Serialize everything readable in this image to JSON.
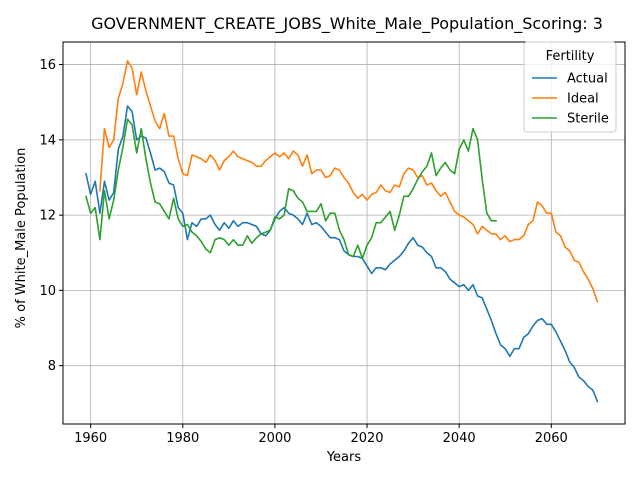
{
  "chart_data": {
    "type": "line",
    "title": "GOVERNMENT_CREATE_JOBS_White_Male_Population_Scoring: 3",
    "xlabel": "Years",
    "ylabel": "% of White_Male Population",
    "xlim": [
      1954,
      2076
    ],
    "ylim": [
      6.45,
      16.6
    ],
    "xticks": [
      1960,
      1980,
      2000,
      2020,
      2040,
      2060
    ],
    "yticks": [
      8,
      10,
      12,
      14,
      16
    ],
    "grid": true,
    "legend": {
      "title": "Fertility",
      "placement": "top-right"
    },
    "series": [
      {
        "name": "Actual",
        "color": "#1f77b4",
        "x": [
          1959,
          1960,
          1961,
          1962,
          1963,
          1964,
          1965,
          1966,
          1967,
          1968,
          1969,
          1970,
          1971,
          1972,
          1973,
          1974,
          1975,
          1976,
          1977,
          1978,
          1979,
          1980,
          1981,
          1982,
          1983,
          1984,
          1985,
          1986,
          1987,
          1988,
          1989,
          1990,
          1991,
          1992,
          1993,
          1994,
          1995,
          1996,
          1997,
          1998,
          1999,
          2000,
          2001,
          2002,
          2003,
          2004,
          2005,
          2006,
          2007,
          2008,
          2009,
          2010,
          2011,
          2012,
          2013,
          2014,
          2015,
          2016,
          2017,
          2018,
          2019,
          2020,
          2021,
          2022,
          2023,
          2024,
          2025,
          2026,
          2027,
          2028,
          2029,
          2030,
          2031,
          2032,
          2033,
          2034,
          2035,
          2036,
          2037,
          2038,
          2039,
          2040,
          2041,
          2042,
          2043,
          2044,
          2045,
          2046,
          2047,
          2048,
          2049,
          2050,
          2051,
          2052,
          2053,
          2054,
          2055,
          2056,
          2057,
          2058,
          2059,
          2060,
          2061,
          2062,
          2063,
          2064,
          2065,
          2066,
          2067,
          2068,
          2069,
          2070
        ],
        "values": [
          13.1,
          12.55,
          12.9,
          12.05,
          12.9,
          12.4,
          12.6,
          13.75,
          14.1,
          14.9,
          14.75,
          14.0,
          14.1,
          14.05,
          13.65,
          13.2,
          13.25,
          13.15,
          12.85,
          12.8,
          12.2,
          12.05,
          11.35,
          11.8,
          11.7,
          11.9,
          11.9,
          12.0,
          11.75,
          11.6,
          11.8,
          11.65,
          11.85,
          11.7,
          11.8,
          11.8,
          11.75,
          11.7,
          11.5,
          11.45,
          11.6,
          11.9,
          12.1,
          12.2,
          12.05,
          12.0,
          11.9,
          11.75,
          12.05,
          11.75,
          11.8,
          11.7,
          11.55,
          11.4,
          11.4,
          11.35,
          11.05,
          10.95,
          10.9,
          10.9,
          10.85,
          10.65,
          10.45,
          10.6,
          10.6,
          10.55,
          10.7,
          10.8,
          10.9,
          11.05,
          11.25,
          11.4,
          11.2,
          11.15,
          11.0,
          10.9,
          10.6,
          10.6,
          10.5,
          10.3,
          10.2,
          10.1,
          10.15,
          10.0,
          10.15,
          9.85,
          9.8,
          9.5,
          9.2,
          8.85,
          8.55,
          8.45,
          8.25,
          8.45,
          8.45,
          8.75,
          8.85,
          9.05,
          9.2,
          9.25,
          9.1,
          9.1,
          8.9,
          8.65,
          8.4,
          8.1,
          7.95,
          7.7,
          7.6,
          7.45,
          7.35,
          7.05
        ]
      },
      {
        "name": "Ideal",
        "color": "#ff7f0e",
        "x": [
          1962,
          1963,
          1964,
          1965,
          1966,
          1967,
          1968,
          1969,
          1970,
          1971,
          1972,
          1973,
          1974,
          1975,
          1976,
          1977,
          1978,
          1979,
          1980,
          1981,
          1982,
          1983,
          1984,
          1985,
          1986,
          1987,
          1988,
          1989,
          1990,
          1991,
          1992,
          1993,
          1994,
          1995,
          1996,
          1997,
          1998,
          1999,
          2000,
          2001,
          2002,
          2003,
          2004,
          2005,
          2006,
          2007,
          2008,
          2009,
          2010,
          2011,
          2012,
          2013,
          2014,
          2015,
          2016,
          2017,
          2018,
          2019,
          2020,
          2021,
          2022,
          2023,
          2024,
          2025,
          2026,
          2027,
          2028,
          2029,
          2030,
          2031,
          2032,
          2033,
          2034,
          2035,
          2036,
          2037,
          2038,
          2039,
          2040,
          2041,
          2042,
          2043,
          2044,
          2045,
          2046,
          2047,
          2048,
          2049,
          2050,
          2051,
          2052,
          2053,
          2054,
          2055,
          2056,
          2057,
          2058,
          2059,
          2060,
          2061,
          2062,
          2063,
          2064,
          2065,
          2066,
          2067,
          2068,
          2069,
          2070
        ],
        "values": [
          12.65,
          14.3,
          13.8,
          14.0,
          15.1,
          15.5,
          16.1,
          15.9,
          15.2,
          15.8,
          15.3,
          14.9,
          14.5,
          14.3,
          14.7,
          14.1,
          14.1,
          13.5,
          13.1,
          13.05,
          13.6,
          13.55,
          13.5,
          13.4,
          13.6,
          13.45,
          13.2,
          13.45,
          13.55,
          13.7,
          13.55,
          13.5,
          13.45,
          13.4,
          13.3,
          13.3,
          13.45,
          13.55,
          13.65,
          13.55,
          13.65,
          13.5,
          13.7,
          13.6,
          13.3,
          13.6,
          13.1,
          13.2,
          13.2,
          13.0,
          13.05,
          13.25,
          13.2,
          13.0,
          12.85,
          12.6,
          12.45,
          12.55,
          12.4,
          12.55,
          12.6,
          12.8,
          12.65,
          12.6,
          12.8,
          12.75,
          13.1,
          13.25,
          13.2,
          13.0,
          13.05,
          12.8,
          12.85,
          12.65,
          12.5,
          12.6,
          12.35,
          12.1,
          12.0,
          11.95,
          11.85,
          11.75,
          11.5,
          11.7,
          11.6,
          11.5,
          11.5,
          11.35,
          11.45,
          11.3,
          11.35,
          11.35,
          11.45,
          11.75,
          11.85,
          12.35,
          12.25,
          12.05,
          12.05,
          11.55,
          11.45,
          11.15,
          11.05,
          10.8,
          10.75,
          10.5,
          10.3,
          10.05,
          9.7
        ]
      },
      {
        "name": "Sterile",
        "color": "#2ca02c",
        "x": [
          1959,
          1960,
          1961,
          1962,
          1963,
          1964,
          1965,
          1966,
          1967,
          1968,
          1969,
          1970,
          1971,
          1972,
          1973,
          1974,
          1975,
          1976,
          1977,
          1978,
          1979,
          1980,
          1981,
          1982,
          1983,
          1984,
          1985,
          1986,
          1987,
          1988,
          1989,
          1990,
          1991,
          1992,
          1993,
          1994,
          1995,
          1996,
          1997,
          1998,
          1999,
          2000,
          2001,
          2002,
          2003,
          2004,
          2005,
          2006,
          2007,
          2008,
          2009,
          2010,
          2011,
          2012,
          2013,
          2014,
          2015,
          2016,
          2017,
          2018,
          2019,
          2020,
          2021,
          2022,
          2023,
          2024,
          2025,
          2026,
          2027,
          2028,
          2029,
          2030,
          2031,
          2032,
          2033,
          2034,
          2035,
          2036,
          2037,
          2038,
          2039,
          2040,
          2041,
          2042,
          2043,
          2044,
          2045,
          2046,
          2047,
          2048
        ],
        "values": [
          12.5,
          12.05,
          12.2,
          11.35,
          12.65,
          11.9,
          12.4,
          13.2,
          13.8,
          14.55,
          14.4,
          13.65,
          14.3,
          13.5,
          12.85,
          12.35,
          12.3,
          12.1,
          11.9,
          12.45,
          11.9,
          11.7,
          11.75,
          11.55,
          11.45,
          11.3,
          11.1,
          11.0,
          11.35,
          11.4,
          11.35,
          11.2,
          11.35,
          11.2,
          11.2,
          11.45,
          11.25,
          11.4,
          11.5,
          11.55,
          11.6,
          11.95,
          11.9,
          12.0,
          12.7,
          12.65,
          12.45,
          12.35,
          12.1,
          12.1,
          12.1,
          12.3,
          11.85,
          12.05,
          12.05,
          11.6,
          11.35,
          10.95,
          10.9,
          11.2,
          10.85,
          11.2,
          11.4,
          11.8,
          11.8,
          11.95,
          12.1,
          11.6,
          12.0,
          12.5,
          12.5,
          12.7,
          12.95,
          13.15,
          13.3,
          13.65,
          13.05,
          13.25,
          13.4,
          13.2,
          13.1,
          13.75,
          14.0,
          13.7,
          14.3,
          14.0,
          12.95,
          12.05,
          11.85,
          11.85
        ]
      }
    ]
  }
}
